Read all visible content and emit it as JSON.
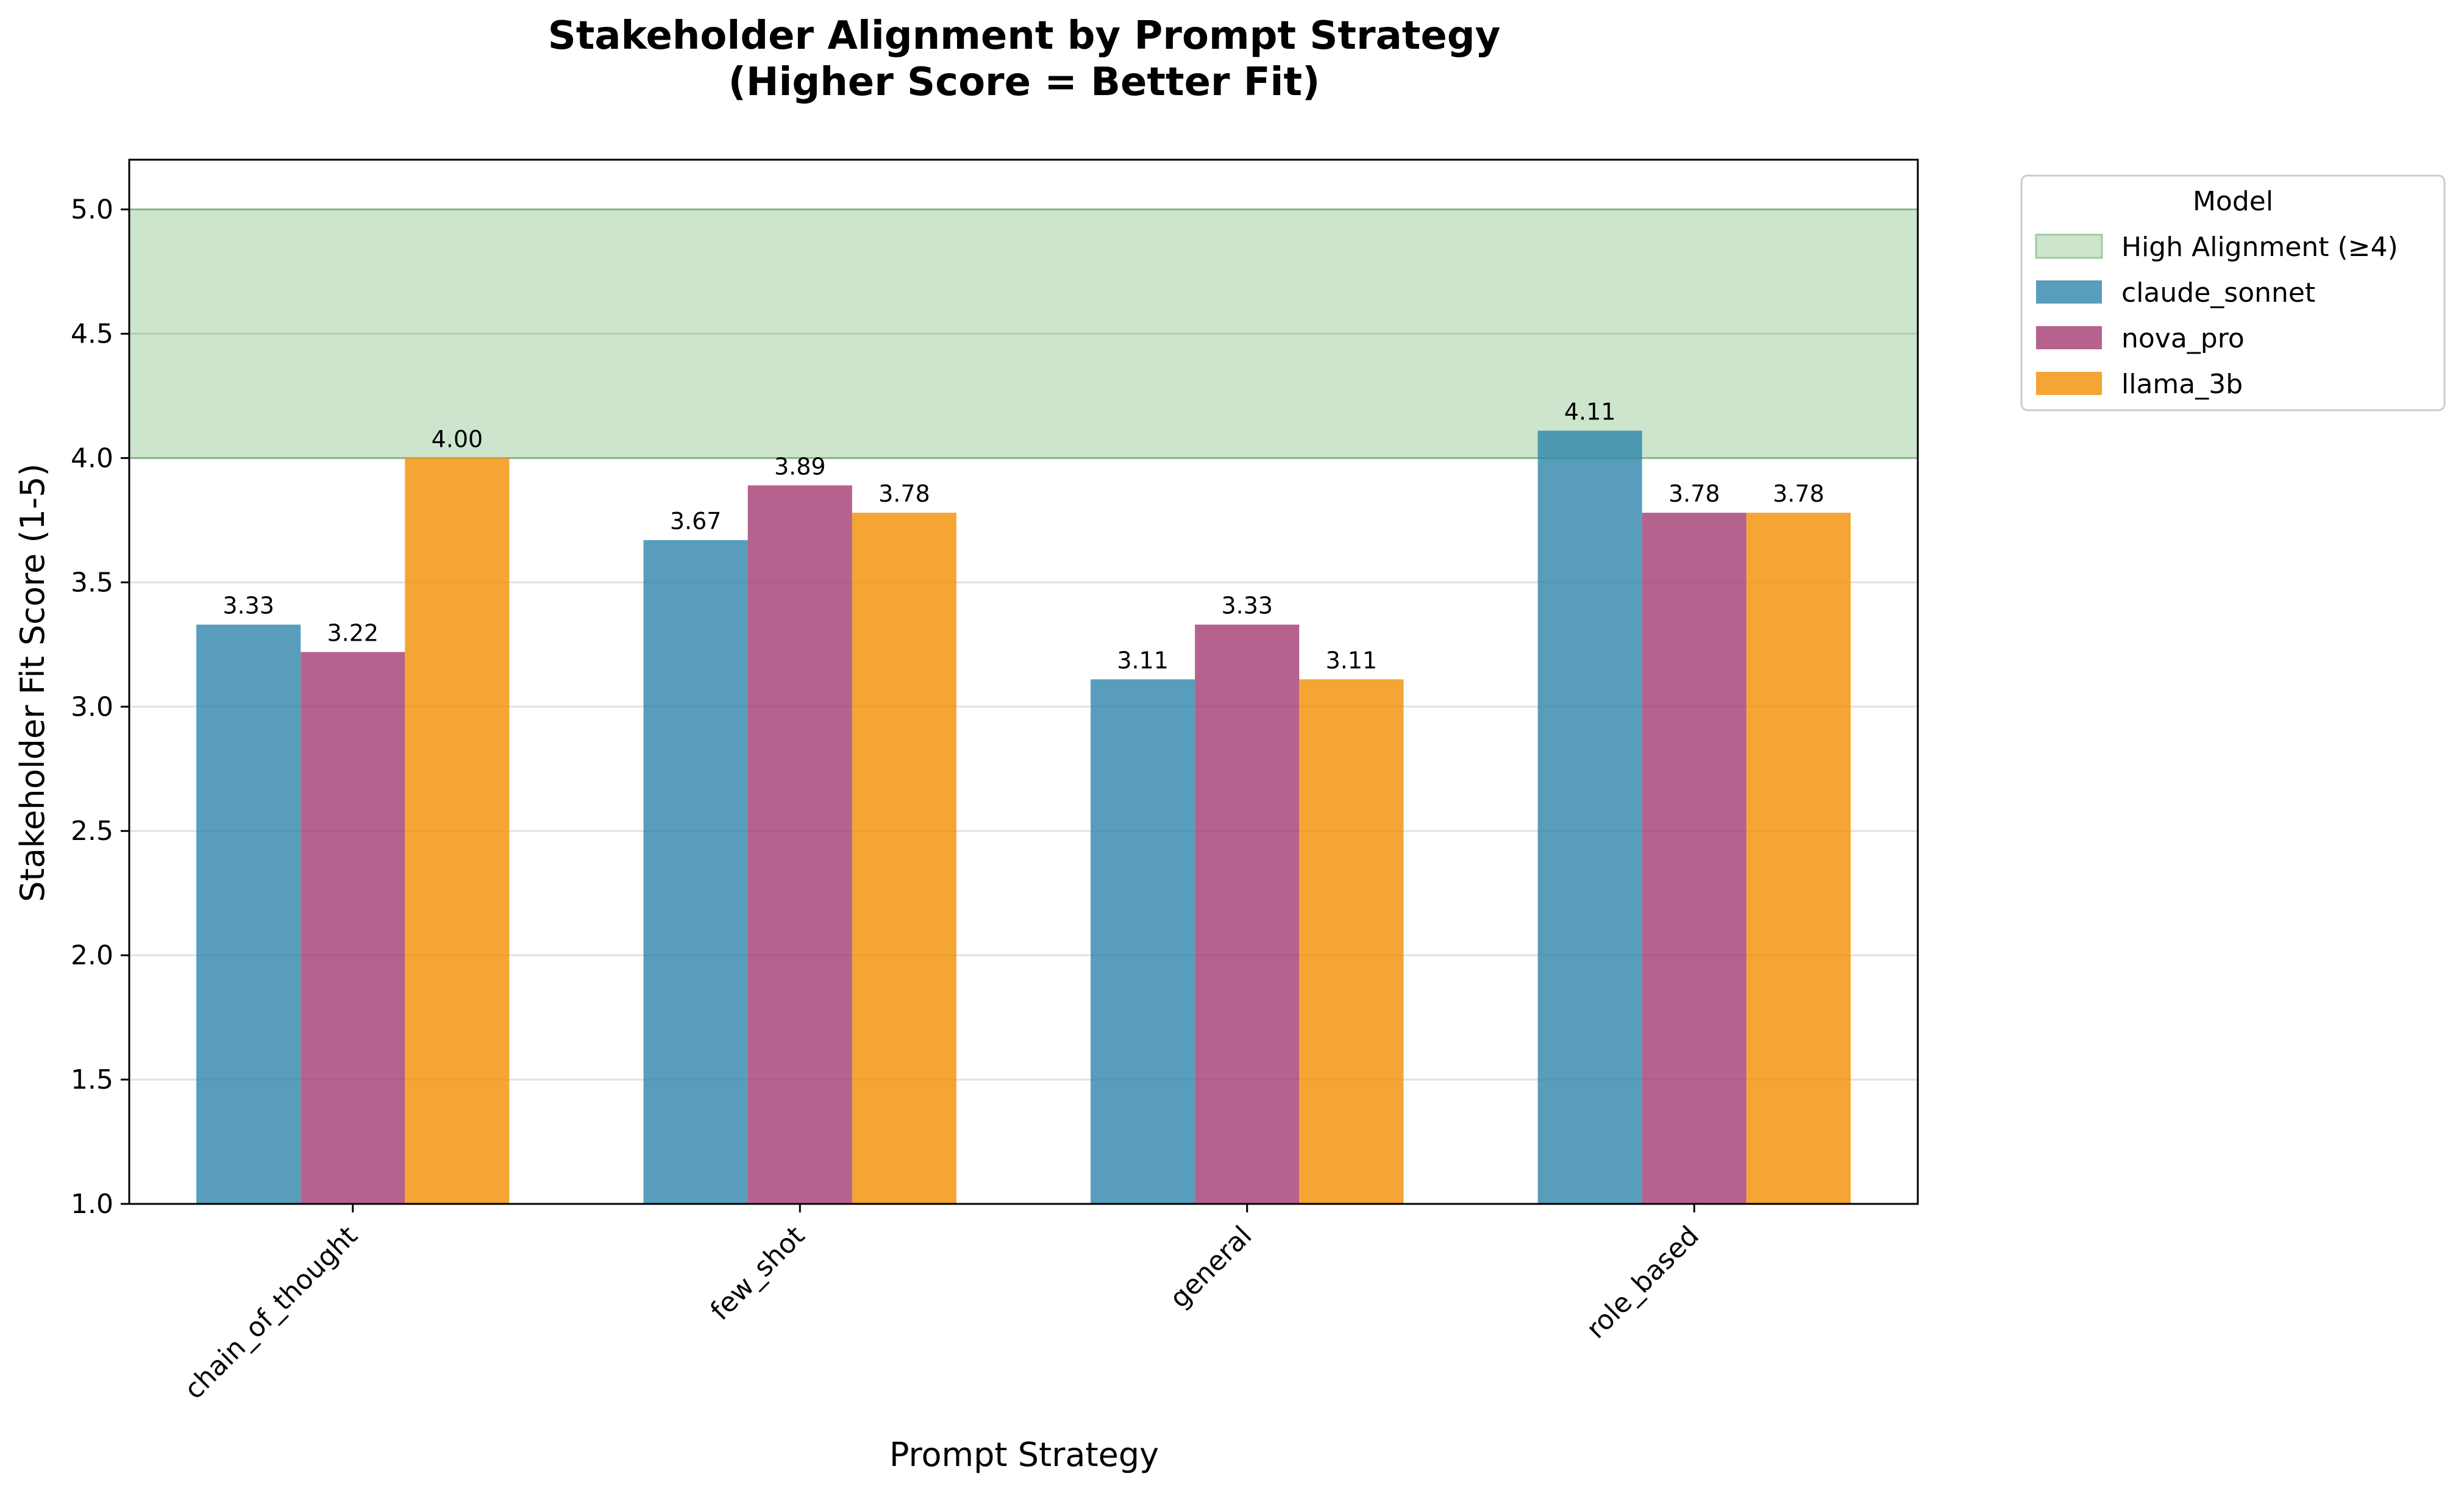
{
  "chart_data": {
    "type": "bar",
    "title_line1": "Stakeholder Alignment by Prompt Strategy",
    "title_line2": "(Higher Score = Better Fit)",
    "xlabel": "Prompt Strategy",
    "ylabel": "Stakeholder Fit Score (1-5)",
    "categories": [
      "chain_of_thought",
      "few_shot",
      "general",
      "role_based"
    ],
    "series": [
      {
        "name": "claude_sonnet",
        "color": "#2E86AB",
        "values": [
          3.33,
          3.67,
          3.11,
          4.11
        ],
        "labels": [
          "3.33",
          "3.67",
          "3.11",
          "4.11"
        ]
      },
      {
        "name": "nova_pro",
        "color": "#A23B72",
        "values": [
          3.22,
          3.89,
          3.33,
          3.78
        ],
        "labels": [
          "3.22",
          "3.89",
          "3.33",
          "3.78"
        ]
      },
      {
        "name": "llama_3b",
        "color": "#F18F01",
        "values": [
          4.0,
          3.78,
          3.11,
          3.78
        ],
        "labels": [
          "4.00",
          "3.78",
          "3.11",
          "3.78"
        ]
      }
    ],
    "ylim": [
      1.0,
      5.2
    ],
    "yticks": [
      1.0,
      1.5,
      2.0,
      2.5,
      3.0,
      3.5,
      4.0,
      4.5,
      5.0
    ],
    "ytick_labels": [
      "1.0",
      "1.5",
      "2.0",
      "2.5",
      "3.0",
      "3.5",
      "4.0",
      "4.5",
      "5.0"
    ],
    "band": {
      "label": "High Alignment (≥4)",
      "from": 4.0,
      "to": 5.0,
      "color": "#cde5cd",
      "edge": "#9fcb9f"
    },
    "grid": "y",
    "legend": {
      "title": "Model",
      "placement": "outside-right-top"
    }
  }
}
